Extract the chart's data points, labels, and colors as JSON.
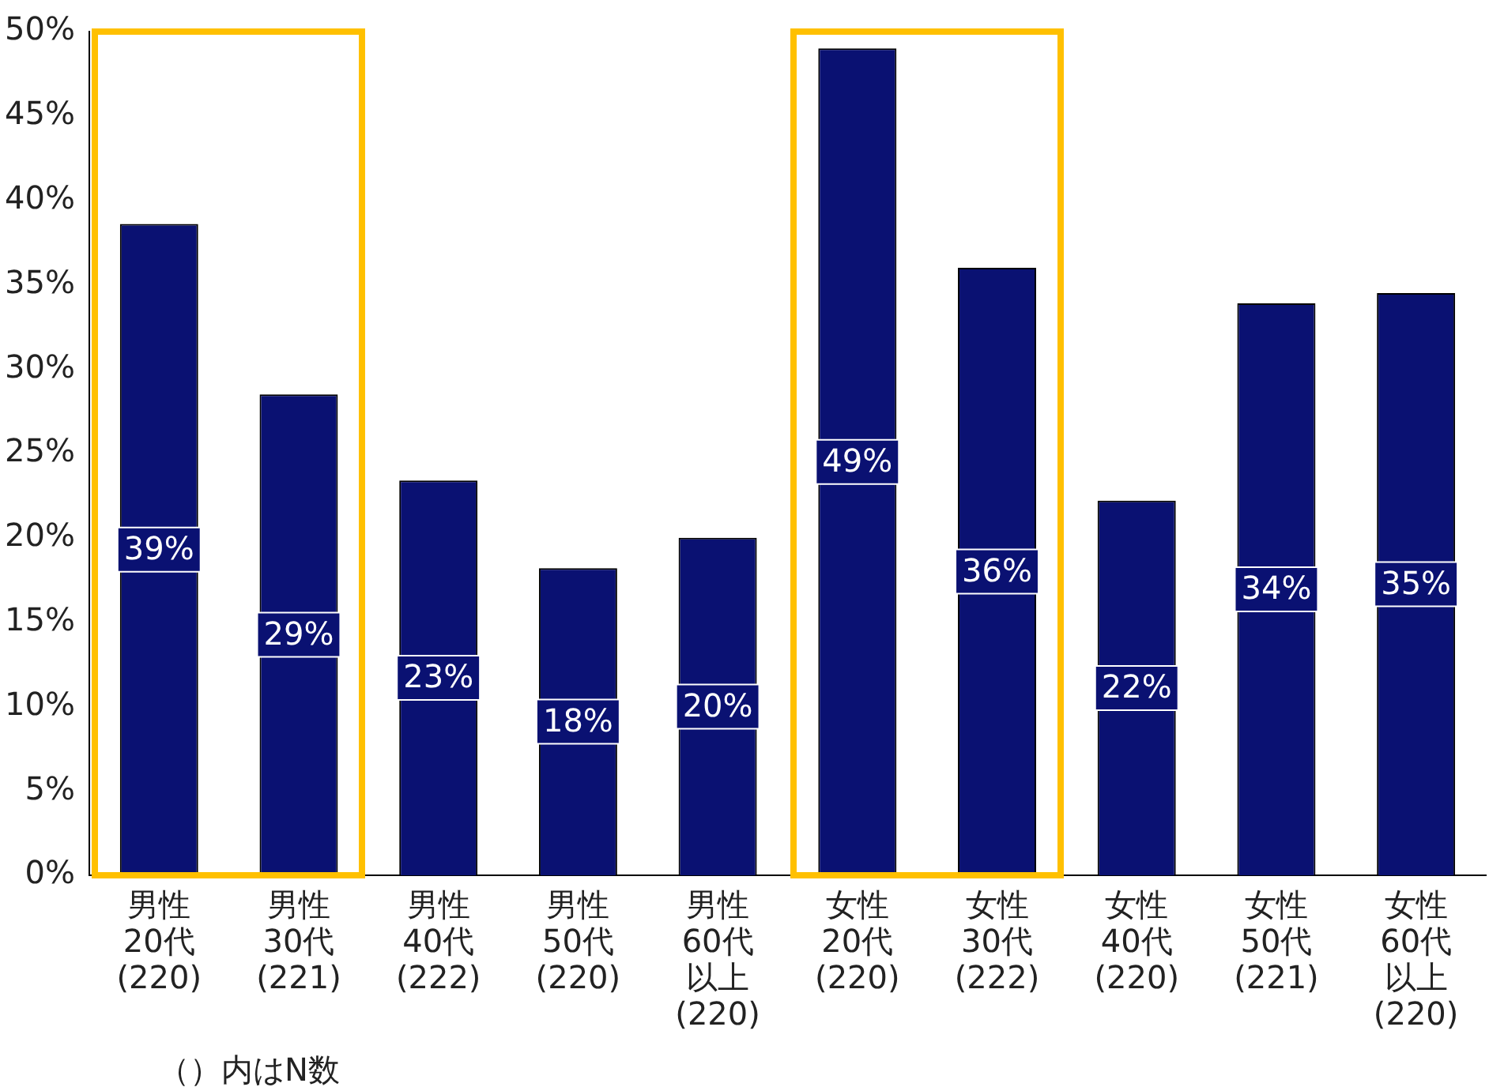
{
  "chart_data": {
    "type": "bar",
    "categories": [
      "男性\n20代\n(220)",
      "男性\n30代\n(221)",
      "男性\n40代\n(222)",
      "男性\n50代\n(220)",
      "男性\n60代以上\n(220)",
      "女性\n20代\n(220)",
      "女性\n30代\n(222)",
      "女性\n40代\n(220)",
      "女性\n50代\n(221)",
      "女性\n60代以上\n(220)"
    ],
    "values": [
      38.6,
      28.5,
      23.4,
      18.2,
      20.0,
      49.0,
      36.0,
      22.2,
      33.9,
      34.5
    ],
    "value_labels": [
      "39%",
      "29%",
      "23%",
      "18%",
      "20%",
      "49%",
      "36%",
      "22%",
      "34%",
      "35%"
    ],
    "color": "#0a1172",
    "ylim": [
      0,
      50
    ],
    "yticks": [
      {
        "value": 0,
        "label": "0%"
      },
      {
        "value": 5,
        "label": "5%"
      },
      {
        "value": 10,
        "label": "10%"
      },
      {
        "value": 15,
        "label": "15%"
      },
      {
        "value": 20,
        "label": "20%"
      },
      {
        "value": 25,
        "label": "25%"
      },
      {
        "value": 30,
        "label": "30%"
      },
      {
        "value": 35,
        "label": "35%"
      },
      {
        "value": 40,
        "label": "40%"
      },
      {
        "value": 45,
        "label": "45%"
      },
      {
        "value": 50,
        "label": "50%"
      }
    ],
    "grid": false,
    "legend": false,
    "annotations": [
      "（）内はN数"
    ]
  }
}
